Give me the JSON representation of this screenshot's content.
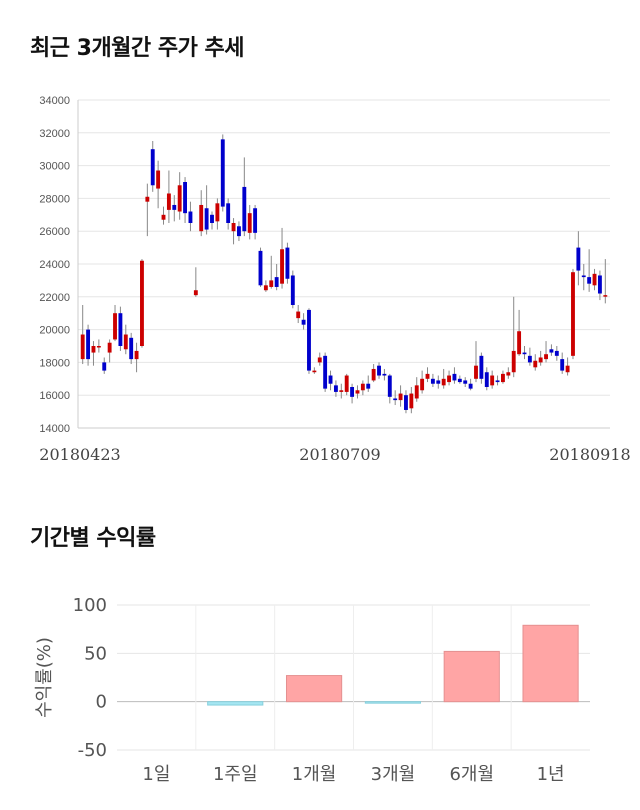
{
  "titles": {
    "price_trend": "최근 3개월간 주가 추세",
    "period_return": "기간별 수익률"
  },
  "colors": {
    "up": "#cc0000",
    "down": "#0000cc",
    "positive": "#ffa5a5",
    "negative": "#a5e6f2"
  },
  "chart_data": [
    {
      "type": "candlestick",
      "title": "최근 3개월간 주가 추세",
      "ylim": [
        14000,
        34000
      ],
      "yticks": [
        14000,
        16000,
        18000,
        20000,
        22000,
        24000,
        26000,
        28000,
        30000,
        32000,
        34000
      ],
      "xtick_labels": [
        "20180423",
        "20180709",
        "20180918"
      ],
      "grid": true,
      "series": [
        {
          "o": 18200,
          "c": 19700,
          "h": 21500,
          "l": 17900
        },
        {
          "o": 20000,
          "c": 18200,
          "h": 20300,
          "l": 17800
        },
        {
          "o": 18600,
          "c": 19000,
          "h": 19300,
          "l": 17800
        },
        {
          "o": 19000,
          "c": 19000,
          "h": 19400,
          "l": 18600
        },
        {
          "o": 18000,
          "c": 17500,
          "h": 18300,
          "l": 17300
        },
        {
          "o": 18600,
          "c": 19200,
          "h": 19400,
          "l": 18000
        },
        {
          "o": 19400,
          "c": 21000,
          "h": 21500,
          "l": 19300
        },
        {
          "o": 21000,
          "c": 19000,
          "h": 21400,
          "l": 18700
        },
        {
          "o": 18800,
          "c": 19700,
          "h": 20300,
          "l": 18500
        },
        {
          "o": 19500,
          "c": 18200,
          "h": 19800,
          "l": 17900
        },
        {
          "o": 18200,
          "c": 18700,
          "h": 19200,
          "l": 17400
        },
        {
          "o": 19000,
          "c": 24200,
          "h": 24300,
          "l": 18900
        },
        {
          "o": 27800,
          "c": 28100,
          "h": 28900,
          "l": 25700
        },
        {
          "o": 31000,
          "c": 28800,
          "h": 31500,
          "l": 28400
        },
        {
          "o": 28600,
          "c": 29700,
          "h": 30300,
          "l": 27400
        },
        {
          "o": 26700,
          "c": 27000,
          "h": 27500,
          "l": 26400
        },
        {
          "o": 27300,
          "c": 28300,
          "h": 29700,
          "l": 26500
        },
        {
          "o": 27600,
          "c": 27300,
          "h": 28200,
          "l": 26600
        },
        {
          "o": 27200,
          "c": 28800,
          "h": 29600,
          "l": 26700
        },
        {
          "o": 29000,
          "c": 27100,
          "h": 29300,
          "l": 26500
        },
        {
          "o": 27200,
          "c": 26500,
          "h": 27800,
          "l": 26000
        },
        {
          "o": 22100,
          "c": 22400,
          "h": 23800,
          "l": 22000
        },
        {
          "o": 26000,
          "c": 27600,
          "h": 28500,
          "l": 25700
        },
        {
          "o": 27400,
          "c": 26100,
          "h": 28800,
          "l": 25800
        },
        {
          "o": 27000,
          "c": 26500,
          "h": 27200,
          "l": 26100
        },
        {
          "o": 26600,
          "c": 27700,
          "h": 28000,
          "l": 26100
        },
        {
          "o": 31600,
          "c": 27500,
          "h": 31900,
          "l": 27200
        },
        {
          "o": 27700,
          "c": 26500,
          "h": 28000,
          "l": 26100
        },
        {
          "o": 26000,
          "c": 26500,
          "h": 26800,
          "l": 25200
        },
        {
          "o": 26300,
          "c": 25700,
          "h": 26600,
          "l": 25400
        },
        {
          "o": 28700,
          "c": 26000,
          "h": 30500,
          "l": 25700
        },
        {
          "o": 25900,
          "c": 27100,
          "h": 27600,
          "l": 25500
        },
        {
          "o": 27400,
          "c": 25900,
          "h": 27600,
          "l": 25500
        },
        {
          "o": 24800,
          "c": 22700,
          "h": 25000,
          "l": 22600
        },
        {
          "o": 22400,
          "c": 22700,
          "h": 23000,
          "l": 22300
        },
        {
          "o": 22600,
          "c": 23000,
          "h": 24500,
          "l": 22500
        },
        {
          "o": 23200,
          "c": 22600,
          "h": 24000,
          "l": 22400
        },
        {
          "o": 22800,
          "c": 24900,
          "h": 26200,
          "l": 22500
        },
        {
          "o": 25000,
          "c": 23100,
          "h": 25300,
          "l": 22800
        },
        {
          "o": 23300,
          "c": 21500,
          "h": 23600,
          "l": 21300
        },
        {
          "o": 20700,
          "c": 21100,
          "h": 21500,
          "l": 20400
        },
        {
          "o": 20600,
          "c": 20300,
          "h": 21000,
          "l": 20000
        },
        {
          "o": 21200,
          "c": 17500,
          "h": 21300,
          "l": 17300
        },
        {
          "o": 17400,
          "c": 17500,
          "h": 17700,
          "l": 17300
        },
        {
          "o": 18000,
          "c": 18300,
          "h": 18600,
          "l": 17800
        },
        {
          "o": 18400,
          "c": 16400,
          "h": 18600,
          "l": 16200
        },
        {
          "o": 17200,
          "c": 16700,
          "h": 17500,
          "l": 16300
        },
        {
          "o": 16600,
          "c": 16200,
          "h": 16900,
          "l": 15900
        },
        {
          "o": 16200,
          "c": 16300,
          "h": 16700,
          "l": 15800
        },
        {
          "o": 16200,
          "c": 17200,
          "h": 17300,
          "l": 16000
        },
        {
          "o": 16500,
          "c": 15900,
          "h": 16700,
          "l": 15500
        },
        {
          "o": 16100,
          "c": 16300,
          "h": 16600,
          "l": 15800
        },
        {
          "o": 16300,
          "c": 16700,
          "h": 16900,
          "l": 16000
        },
        {
          "o": 16700,
          "c": 16400,
          "h": 17200,
          "l": 16200
        },
        {
          "o": 16900,
          "c": 17600,
          "h": 17900,
          "l": 16800
        },
        {
          "o": 17800,
          "c": 17200,
          "h": 18000,
          "l": 17000
        },
        {
          "o": 17300,
          "c": 17200,
          "h": 17600,
          "l": 16900
        },
        {
          "o": 17200,
          "c": 15900,
          "h": 17300,
          "l": 15500
        },
        {
          "o": 15800,
          "c": 15700,
          "h": 16300,
          "l": 15400
        },
        {
          "o": 15700,
          "c": 16100,
          "h": 16600,
          "l": 15300
        },
        {
          "o": 16000,
          "c": 15100,
          "h": 16300,
          "l": 14900
        },
        {
          "o": 15200,
          "c": 16100,
          "h": 16500,
          "l": 14900
        },
        {
          "o": 15800,
          "c": 16600,
          "h": 17100,
          "l": 15600
        },
        {
          "o": 16300,
          "c": 17000,
          "h": 17500,
          "l": 16100
        },
        {
          "o": 17000,
          "c": 17300,
          "h": 17700,
          "l": 16800
        },
        {
          "o": 17000,
          "c": 16700,
          "h": 17300,
          "l": 16500
        },
        {
          "o": 16900,
          "c": 16700,
          "h": 17200,
          "l": 16400
        },
        {
          "o": 16600,
          "c": 17000,
          "h": 17600,
          "l": 16400
        },
        {
          "o": 16800,
          "c": 17200,
          "h": 17500,
          "l": 16600
        },
        {
          "o": 17300,
          "c": 16900,
          "h": 17700,
          "l": 16700
        },
        {
          "o": 17000,
          "c": 16800,
          "h": 17200,
          "l": 16700
        },
        {
          "o": 16900,
          "c": 16700,
          "h": 17100,
          "l": 16500
        },
        {
          "o": 16700,
          "c": 16400,
          "h": 17000,
          "l": 16300
        },
        {
          "o": 17000,
          "c": 17800,
          "h": 19300,
          "l": 16800
        },
        {
          "o": 18400,
          "c": 17000,
          "h": 18600,
          "l": 16700
        },
        {
          "o": 17400,
          "c": 16500,
          "h": 17700,
          "l": 16300
        },
        {
          "o": 16600,
          "c": 17200,
          "h": 17500,
          "l": 16400
        },
        {
          "o": 16900,
          "c": 16800,
          "h": 17200,
          "l": 16600
        },
        {
          "o": 16800,
          "c": 17300,
          "h": 17500,
          "l": 16700
        },
        {
          "o": 17200,
          "c": 17400,
          "h": 17700,
          "l": 17000
        },
        {
          "o": 17400,
          "c": 18700,
          "h": 22000,
          "l": 17100
        },
        {
          "o": 18500,
          "c": 19900,
          "h": 21200,
          "l": 18400
        },
        {
          "o": 18600,
          "c": 18500,
          "h": 19000,
          "l": 18200
        },
        {
          "o": 18400,
          "c": 18000,
          "h": 18900,
          "l": 17800
        },
        {
          "o": 17700,
          "c": 18100,
          "h": 18500,
          "l": 17500
        },
        {
          "o": 18000,
          "c": 18300,
          "h": 18700,
          "l": 17800
        },
        {
          "o": 18200,
          "c": 18500,
          "h": 19300,
          "l": 18000
        },
        {
          "o": 18800,
          "c": 18600,
          "h": 19100,
          "l": 18400
        },
        {
          "o": 18700,
          "c": 18400,
          "h": 19000,
          "l": 18100
        },
        {
          "o": 18200,
          "c": 17500,
          "h": 18600,
          "l": 17300
        },
        {
          "o": 17400,
          "c": 17800,
          "h": 18300,
          "l": 17200
        },
        {
          "o": 18400,
          "c": 23500,
          "h": 23700,
          "l": 18200
        },
        {
          "o": 25000,
          "c": 23600,
          "h": 26000,
          "l": 22700
        },
        {
          "o": 23300,
          "c": 23200,
          "h": 24000,
          "l": 22400
        },
        {
          "o": 23200,
          "c": 22800,
          "h": 24900,
          "l": 22300
        },
        {
          "o": 22700,
          "c": 23400,
          "h": 23700,
          "l": 22400
        },
        {
          "o": 23300,
          "c": 22200,
          "h": 23600,
          "l": 21800
        },
        {
          "o": 22100,
          "c": 22100,
          "h": 24300,
          "l": 21600
        }
      ]
    },
    {
      "type": "bar",
      "title": "기간별 수익률",
      "categories": [
        "1일",
        "1주일",
        "1개월",
        "3개월",
        "6개월",
        "1년"
      ],
      "values": [
        0,
        -3.5,
        27,
        -1.5,
        52,
        79
      ],
      "ylabel": "수익률(%)",
      "ylim": [
        -50,
        100
      ],
      "yticks": [
        -50,
        0,
        50,
        100
      ],
      "grid": true
    }
  ]
}
